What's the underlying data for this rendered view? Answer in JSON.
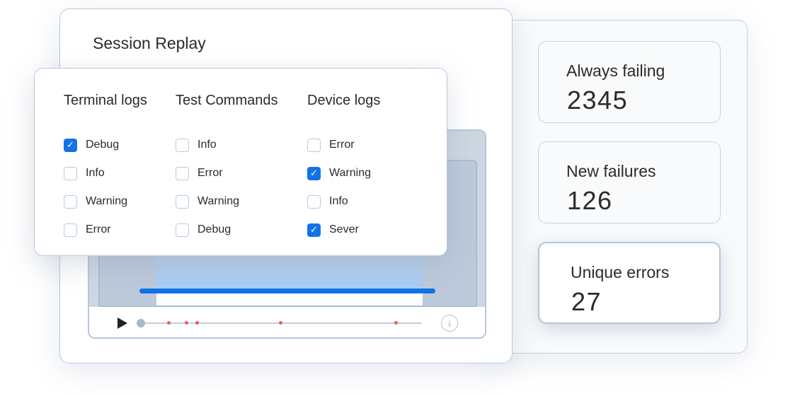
{
  "session": {
    "title": "Session Replay"
  },
  "filters": {
    "columns": [
      {
        "heading": "Terminal logs",
        "items": [
          {
            "label": "Debug",
            "checked": true
          },
          {
            "label": "Info",
            "checked": false
          },
          {
            "label": "Warning",
            "checked": false
          },
          {
            "label": "Error",
            "checked": false
          }
        ]
      },
      {
        "heading": "Test Commands",
        "items": [
          {
            "label": "Info",
            "checked": false
          },
          {
            "label": "Error",
            "checked": false
          },
          {
            "label": "Warning",
            "checked": false
          },
          {
            "label": "Debug",
            "checked": false
          }
        ]
      },
      {
        "heading": "Device logs",
        "items": [
          {
            "label": "Error",
            "checked": false
          },
          {
            "label": "Warning",
            "checked": true
          },
          {
            "label": "Info",
            "checked": false
          },
          {
            "label": "Sever",
            "checked": true
          }
        ]
      }
    ]
  },
  "player": {
    "icons": [
      "play-icon",
      "download-icon"
    ],
    "marker_color": "#f25c5c",
    "accent": "#1373e6"
  },
  "stats": [
    {
      "label": "Always failing",
      "value": "2345"
    },
    {
      "label": "New failures",
      "value": "126"
    },
    {
      "label": "Unique errors",
      "value": "27"
    }
  ]
}
